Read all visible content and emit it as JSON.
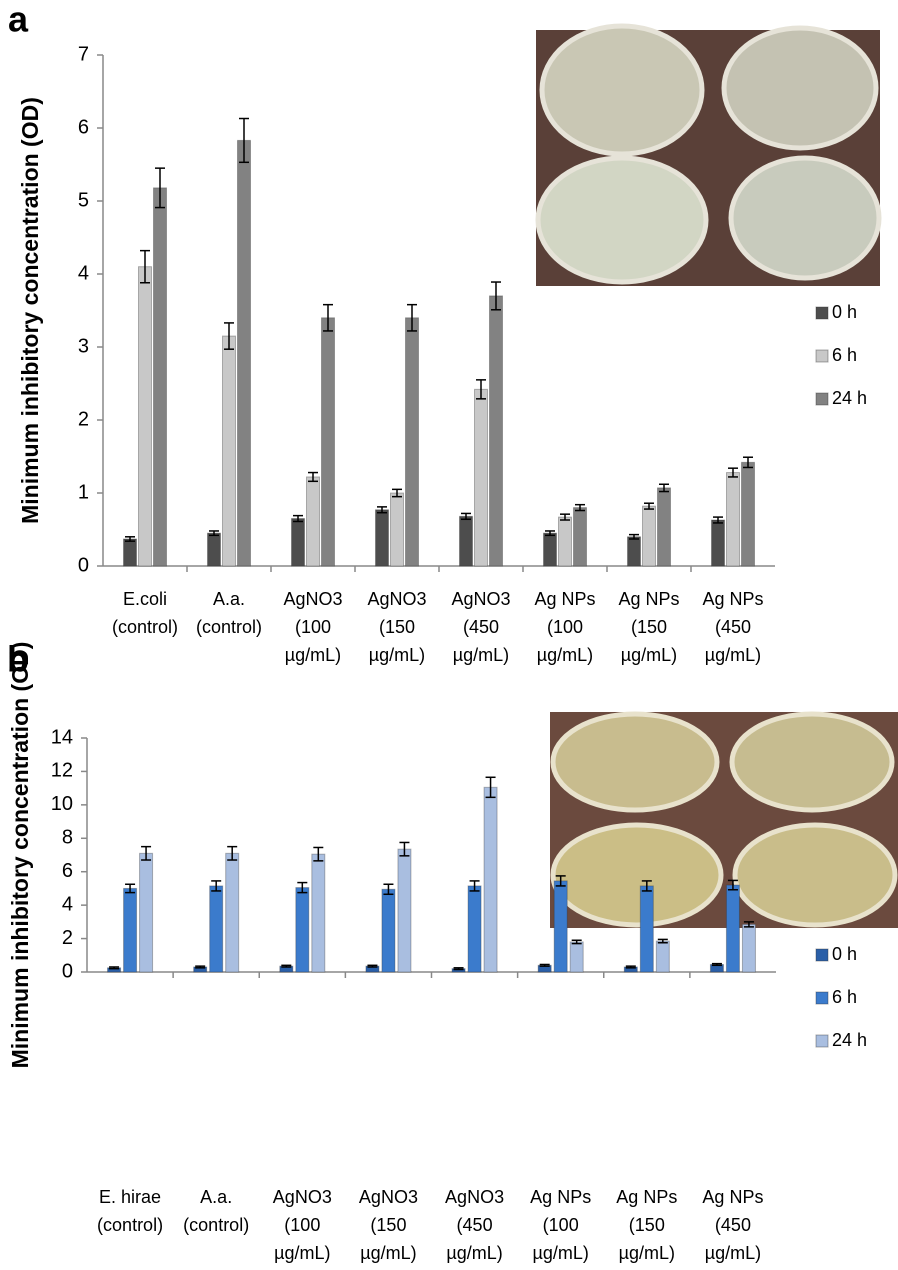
{
  "chart_data": [
    {
      "type": "bar",
      "label": "a",
      "ylabel": "Minimum inhibitory concentration (OD)",
      "categories": [
        [
          "E.coli",
          "(control)"
        ],
        [
          "A.a.",
          "(control)"
        ],
        [
          "AgNO3",
          "(100",
          "µg/mL)"
        ],
        [
          "AgNO3",
          "(150",
          "µg/mL)"
        ],
        [
          "AgNO3",
          "(450",
          "µg/mL)"
        ],
        [
          "Ag NPs",
          "(100",
          "µg/mL)"
        ],
        [
          "Ag NPs",
          "(150",
          "µg/mL)"
        ],
        [
          "Ag NPs",
          "(450",
          "µg/mL)"
        ]
      ],
      "series": [
        {
          "name": "0 h",
          "color": "#4d4d4d",
          "values": [
            0.37,
            0.45,
            0.65,
            0.77,
            0.68,
            0.45,
            0.4,
            0.63
          ],
          "errors": [
            0.03,
            0.03,
            0.04,
            0.04,
            0.04,
            0.03,
            0.03,
            0.04
          ]
        },
        {
          "name": "6 h",
          "color": "#c8c8c8",
          "values": [
            4.1,
            3.15,
            1.22,
            1.0,
            2.42,
            0.67,
            0.82,
            1.28
          ],
          "errors": [
            0.22,
            0.18,
            0.06,
            0.05,
            0.13,
            0.04,
            0.04,
            0.06
          ]
        },
        {
          "name": "24 h",
          "color": "#828282",
          "values": [
            5.18,
            5.83,
            3.4,
            3.4,
            3.7,
            0.8,
            1.07,
            1.42
          ],
          "errors": [
            0.27,
            0.3,
            0.18,
            0.18,
            0.19,
            0.04,
            0.05,
            0.07
          ]
        }
      ],
      "ylim": [
        0,
        7
      ],
      "yticks": [
        0,
        1,
        2,
        3,
        4,
        5,
        6,
        7
      ],
      "grid": false,
      "legend": "right"
    },
    {
      "type": "bar",
      "label": "b",
      "ylabel": "Minimum inhibitory concentration (OD)",
      "categories": [
        [
          "E. hirae",
          "(control)"
        ],
        [
          "A.a.",
          "(control)"
        ],
        [
          "AgNO3",
          "(100",
          "µg/mL)"
        ],
        [
          "AgNO3",
          "(150",
          "µg/mL)"
        ],
        [
          "AgNO3",
          "(450",
          "µg/mL)"
        ],
        [
          "Ag NPs",
          "(100",
          "µg/mL)"
        ],
        [
          "Ag NPs",
          "(150",
          "µg/mL)"
        ],
        [
          "Ag NPs",
          "(450",
          "µg/mL)"
        ]
      ],
      "series": [
        {
          "name": "0 h",
          "color": "#2a5fa8",
          "values": [
            0.25,
            0.3,
            0.35,
            0.35,
            0.2,
            0.4,
            0.3,
            0.45
          ],
          "errors": [
            0.05,
            0.05,
            0.05,
            0.05,
            0.05,
            0.05,
            0.05,
            0.05
          ]
        },
        {
          "name": "6 h",
          "color": "#3b7bcc",
          "values": [
            5.0,
            5.15,
            5.05,
            4.95,
            5.15,
            5.45,
            5.15,
            5.2
          ],
          "errors": [
            0.25,
            0.3,
            0.3,
            0.3,
            0.3,
            0.3,
            0.3,
            0.28
          ]
        },
        {
          "name": "24 h",
          "color": "#a9bee0",
          "values": [
            7.1,
            7.1,
            7.05,
            7.35,
            11.05,
            1.8,
            1.85,
            2.85
          ],
          "errors": [
            0.4,
            0.4,
            0.4,
            0.4,
            0.6,
            0.1,
            0.1,
            0.15
          ]
        }
      ],
      "ylim": [
        0,
        14
      ],
      "yticks": [
        0,
        2,
        4,
        6,
        8,
        10,
        12,
        14
      ],
      "grid": false,
      "legend": "right"
    }
  ]
}
